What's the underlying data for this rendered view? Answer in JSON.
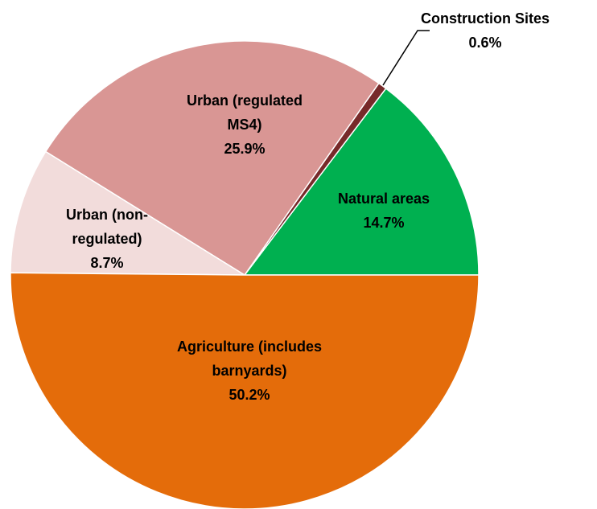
{
  "chart_data": {
    "type": "pie",
    "categories": [
      "Natural areas",
      "Construction Sites",
      "Urban (regulated MS4)",
      "Urban (non-regulated)",
      "Agriculture (includes barnyards)"
    ],
    "values": [
      14.7,
      0.6,
      25.9,
      8.7,
      50.2
    ],
    "value_labels": [
      "14.7%",
      "0.6%",
      "25.9%",
      "8.7%",
      "50.2%"
    ],
    "colors": [
      "#00b050",
      "#772a2a",
      "#d99694",
      "#f2dcdb",
      "#e46c0a"
    ]
  }
}
